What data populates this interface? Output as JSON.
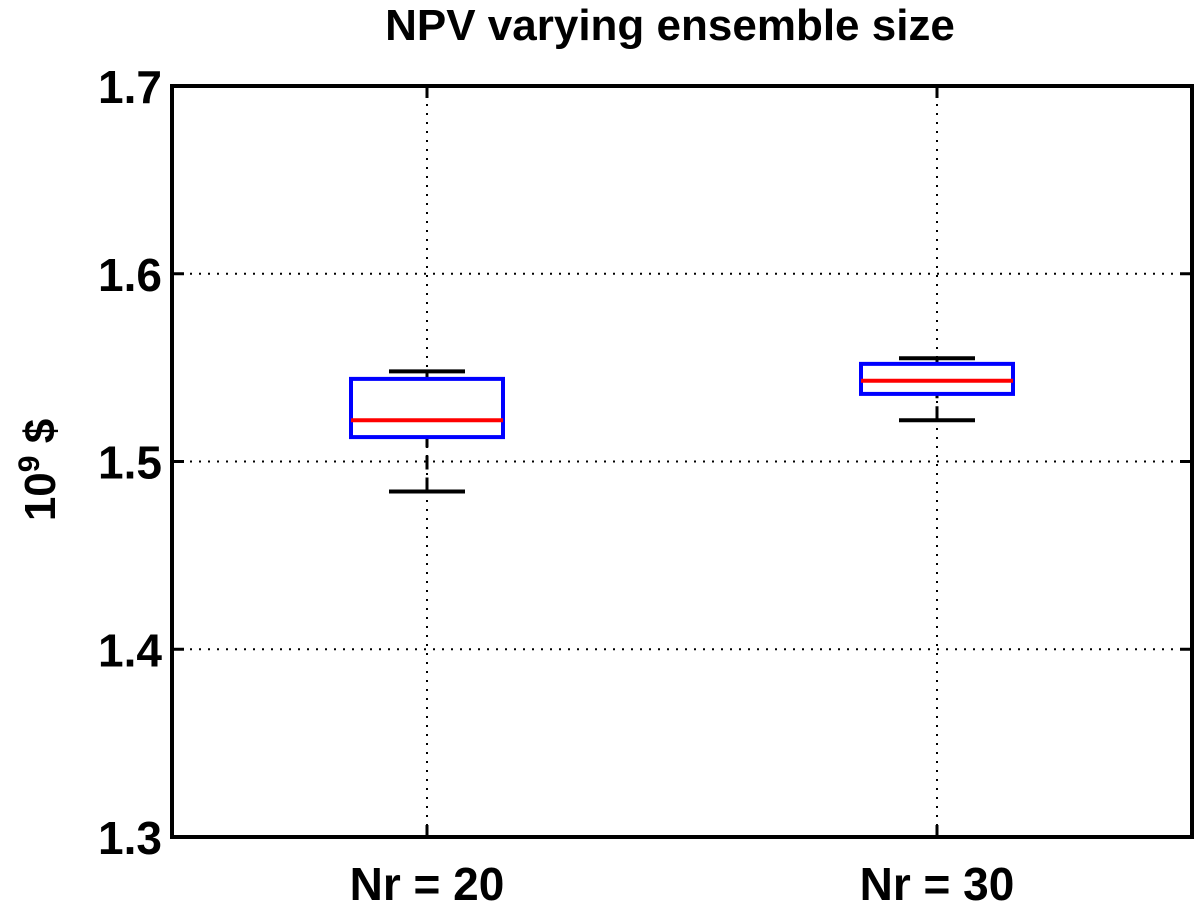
{
  "chart_data": {
    "type": "box",
    "title": "NPV varying ensemble size",
    "ylabel_base": "10",
    "ylabel_exp": "9",
    "ylabel_unit": " $",
    "ylim": [
      1.3,
      1.7
    ],
    "yticks": [
      "1.3",
      "1.4",
      "1.5",
      "1.6",
      "1.7"
    ],
    "categories": [
      "Nr = 20",
      "Nr = 30"
    ],
    "grid": true,
    "boxes": [
      {
        "category": "Nr = 20",
        "whisker_low": 1.484,
        "q1": 1.513,
        "median": 1.522,
        "q3": 1.544,
        "whisker_high": 1.548
      },
      {
        "category": "Nr = 30",
        "whisker_low": 1.522,
        "q1": 1.536,
        "median": 1.543,
        "q3": 1.552,
        "whisker_high": 1.555
      }
    ],
    "colors": {
      "box": "#0000ff",
      "median": "#ff0000",
      "whisker": "#000000",
      "grid": "#000000"
    }
  }
}
